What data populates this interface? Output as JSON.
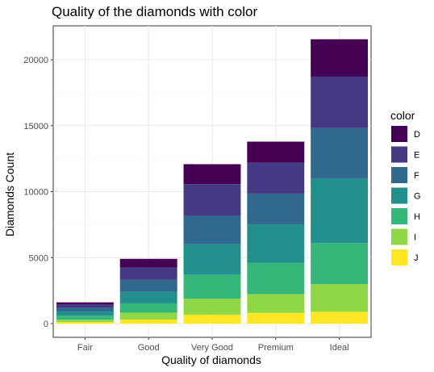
{
  "chart_data": {
    "type": "bar",
    "stacked": true,
    "title": "Quality of the diamonds with color",
    "xlabel": "Quality of diamonds",
    "ylabel": "Diamonds Count",
    "categories": [
      "Fair",
      "Good",
      "Very Good",
      "Premium",
      "Ideal"
    ],
    "ylim": [
      0,
      23000
    ],
    "yticks": [
      0,
      5000,
      10000,
      15000,
      20000
    ],
    "grid": true,
    "legend": {
      "title": "color",
      "position": "right"
    },
    "series": [
      {
        "name": "D",
        "color": "#440154",
        "values": [
          163,
          662,
          1513,
          1603,
          2834
        ]
      },
      {
        "name": "E",
        "color": "#443A83",
        "values": [
          224,
          933,
          2400,
          2337,
          3903
        ]
      },
      {
        "name": "F",
        "color": "#31688E",
        "values": [
          312,
          909,
          2164,
          2331,
          3826
        ]
      },
      {
        "name": "G",
        "color": "#21908C",
        "values": [
          314,
          871,
          2299,
          2924,
          4884
        ]
      },
      {
        "name": "H",
        "color": "#35B779",
        "values": [
          303,
          702,
          1824,
          2360,
          3115
        ]
      },
      {
        "name": "I",
        "color": "#8FD744",
        "values": [
          175,
          522,
          1204,
          1428,
          2093
        ]
      },
      {
        "name": "J",
        "color": "#FDE725",
        "values": [
          119,
          307,
          678,
          808,
          896
        ]
      }
    ]
  }
}
